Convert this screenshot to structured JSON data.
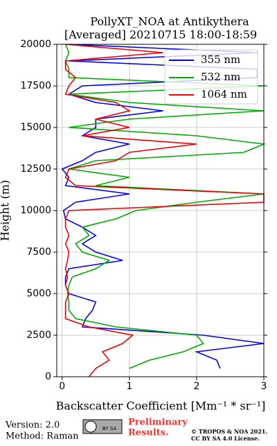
{
  "chart_data": {
    "type": "profile",
    "title": "PollyXT_NOA at Antikythera",
    "subtitle": "[Averaged] 20210715 18:00-18:59",
    "x_label": "Backscatter Coefficient [Mm⁻¹ * sr⁻¹]",
    "y_label": "Height (m)",
    "heights": [
      0,
      500,
      1000,
      1500,
      2000,
      2500,
      3000,
      3500,
      4000,
      4500,
      5000,
      5500,
      6000,
      6500,
      7000,
      7500,
      8000,
      8500,
      9000,
      9500,
      10000,
      10500,
      11000,
      11500,
      12000,
      12500,
      13000,
      13500,
      14000,
      14500,
      15000,
      15500,
      16000,
      16500,
      17000,
      17500,
      18000,
      18500,
      19000,
      19500,
      20000
    ],
    "series": [
      {
        "name": "355 nm",
        "color": "#0000ee",
        "values": [
          null,
          2.35,
          2.3,
          2.0,
          3.0,
          2.1,
          0.3,
          0.35,
          0.45,
          0.5,
          0.1,
          0.05,
          0.05,
          0.1,
          0.9,
          0.5,
          0.3,
          0.5,
          0.3,
          0.05,
          0.02,
          0.2,
          1.0,
          0.05,
          0.1,
          0.0,
          0.3,
          0.5,
          1.0,
          0.3,
          0.5,
          0.5,
          1.5,
          0.5,
          0.1,
          0.3,
          2.9,
          2.9,
          0.1,
          2.9,
          0.1
        ]
      },
      {
        "name": "532 nm",
        "color": "#00aa00",
        "values": [
          null,
          1.0,
          1.3,
          1.8,
          2.1,
          2.0,
          0.8,
          0.2,
          0.1,
          0.1,
          0.08,
          0.1,
          0.15,
          0.5,
          0.7,
          0.3,
          0.2,
          0.4,
          0.3,
          0.8,
          1.1,
          2.0,
          3.0,
          0.5,
          1.0,
          0.1,
          0.5,
          2.7,
          3.0,
          2.0,
          0.1,
          1.0,
          3.0,
          1.0,
          0.1,
          3.0,
          0.1,
          0.1,
          0.05,
          0.1,
          0.05
        ]
      },
      {
        "name": "1064 nm",
        "color": "#ee0000",
        "values": [
          0.4,
          0.5,
          0.7,
          0.6,
          0.9,
          1.05,
          0.4,
          0.05,
          0.05,
          0.05,
          0.1,
          0.05,
          0.08,
          0.05,
          0.08,
          0.1,
          0.05,
          0.1,
          0.05,
          0.05,
          0.1,
          3.0,
          3.0,
          0.2,
          0.05,
          0.1,
          0.8,
          1.0,
          2.0,
          0.3,
          1.0,
          0.5,
          1.0,
          0.8,
          0.05,
          0.1,
          0.2,
          0.05,
          0.05,
          1.5,
          0.05
        ]
      }
    ],
    "xlim": [
      -0.08,
      3
    ],
    "ylim": [
      0,
      20000
    ],
    "xticks": [
      0,
      1,
      2,
      3
    ],
    "yticks": [
      0,
      2500,
      5000,
      7500,
      10000,
      12500,
      15000,
      17500,
      20000
    ],
    "grid": true,
    "legend": "upper right"
  },
  "footer": {
    "version": "Version: 2.0",
    "method": "Method: Raman",
    "badge": "BY SA",
    "preliminary": [
      "Preliminary",
      "Results."
    ],
    "copyright": "© TROPOS & NOA 2021.",
    "license": "CC BY SA 4.0 License."
  }
}
